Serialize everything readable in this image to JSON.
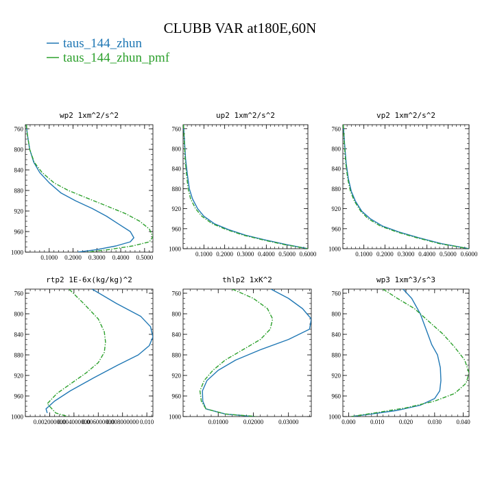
{
  "title": "CLUBB VAR at180E,60N",
  "legend": [
    {
      "label": "taus_144_zhun",
      "color": "#1f77b4",
      "dash": "solid"
    },
    {
      "label": "taus_144_zhun_pmf",
      "color": "#2ca02c",
      "dash": "dashdot"
    }
  ],
  "chart_data": [
    {
      "type": "line",
      "title": "wp2  1xm^2/s^2",
      "y_ticks": [
        760,
        800,
        840,
        880,
        920,
        960,
        1000
      ],
      "ylim": [
        752,
        1000
      ],
      "y_inverted": true,
      "x_ticks": [
        0.1,
        0.2,
        0.3,
        0.4,
        0.5
      ],
      "x_tick_labels": [
        "0.1000",
        "0.2000",
        "0.3000",
        "0.4000",
        "0.5000"
      ],
      "xlim": [
        0.0,
        0.535
      ],
      "series": [
        {
          "name": "taus_144_zhun",
          "color": "#1f77b4",
          "x": [
            0.004,
            0.008,
            0.018,
            0.035,
            0.06,
            0.1,
            0.15,
            0.21,
            0.28,
            0.34,
            0.39,
            0.44,
            0.455,
            0.44,
            0.38,
            0.3,
            0.22
          ],
          "y": [
            752,
            770,
            800,
            825,
            845,
            865,
            885,
            900,
            915,
            930,
            945,
            960,
            972,
            980,
            988,
            995,
            1000
          ]
        },
        {
          "name": "taus_144_zhun_pmf",
          "color": "#2ca02c",
          "x": [
            0.004,
            0.008,
            0.018,
            0.037,
            0.07,
            0.12,
            0.18,
            0.26,
            0.34,
            0.42,
            0.48,
            0.52,
            0.535,
            0.52,
            0.45,
            0.35,
            0.26
          ],
          "y": [
            752,
            770,
            800,
            825,
            845,
            865,
            880,
            895,
            910,
            925,
            940,
            955,
            970,
            980,
            988,
            995,
            1000
          ]
        }
      ]
    },
    {
      "type": "line",
      "title": "up2  1xm^2/s^2",
      "y_ticks": [
        760,
        800,
        840,
        880,
        920,
        960,
        1000
      ],
      "ylim": [
        752,
        1000
      ],
      "y_inverted": true,
      "x_ticks": [
        0.1,
        0.2,
        0.3,
        0.4,
        0.5,
        0.6
      ],
      "x_tick_labels": [
        "0.1000",
        "0.2000",
        "0.3000",
        "0.4000",
        "0.5000",
        "0.6000"
      ],
      "xlim": [
        0.0,
        0.6
      ],
      "series": [
        {
          "name": "taus_144_zhun",
          "color": "#1f77b4",
          "x": [
            0.002,
            0.006,
            0.012,
            0.02,
            0.03,
            0.045,
            0.07,
            0.1,
            0.15,
            0.22,
            0.3,
            0.4,
            0.5,
            0.6
          ],
          "y": [
            752,
            780,
            820,
            850,
            880,
            900,
            920,
            935,
            950,
            962,
            973,
            983,
            992,
            1000
          ]
        },
        {
          "name": "taus_144_zhun_pmf",
          "color": "#2ca02c",
          "x": [
            0.002,
            0.005,
            0.01,
            0.016,
            0.024,
            0.036,
            0.06,
            0.09,
            0.14,
            0.21,
            0.29,
            0.39,
            0.49,
            0.6
          ],
          "y": [
            752,
            780,
            820,
            850,
            880,
            900,
            920,
            935,
            950,
            962,
            973,
            983,
            992,
            1000
          ]
        }
      ]
    },
    {
      "type": "line",
      "title": "vp2  1xm^2/s^2",
      "y_ticks": [
        760,
        800,
        840,
        880,
        920,
        960,
        1000
      ],
      "ylim": [
        752,
        1000
      ],
      "y_inverted": true,
      "x_ticks": [
        0.1,
        0.2,
        0.3,
        0.4,
        0.5,
        0.6
      ],
      "x_tick_labels": [
        "0.1000",
        "0.2000",
        "0.3000",
        "0.4000",
        "0.5000",
        "0.6000"
      ],
      "xlim": [
        0.0,
        0.6
      ],
      "series": [
        {
          "name": "taus_144_zhun",
          "color": "#1f77b4",
          "x": [
            0.002,
            0.008,
            0.016,
            0.026,
            0.04,
            0.06,
            0.09,
            0.13,
            0.19,
            0.27,
            0.36,
            0.47,
            0.6
          ],
          "y": [
            752,
            790,
            830,
            860,
            885,
            905,
            925,
            940,
            955,
            967,
            978,
            990,
            1000
          ]
        },
        {
          "name": "taus_144_zhun_pmf",
          "color": "#2ca02c",
          "x": [
            0.002,
            0.007,
            0.014,
            0.023,
            0.036,
            0.055,
            0.085,
            0.12,
            0.18,
            0.26,
            0.35,
            0.46,
            0.6
          ],
          "y": [
            752,
            790,
            830,
            860,
            885,
            905,
            925,
            940,
            955,
            967,
            978,
            990,
            1000
          ]
        }
      ]
    },
    {
      "type": "line",
      "title": "rtp2  1E-6x(kg/kg)^2",
      "y_ticks": [
        760,
        800,
        840,
        880,
        920,
        960,
        1000
      ],
      "ylim": [
        752,
        1000
      ],
      "y_inverted": true,
      "x_ticks": [
        0.002,
        0.004,
        0.006,
        0.008,
        0.01
      ],
      "x_tick_labels": [
        "0.002000000",
        "0.004000000",
        "0.006000000",
        "0.008000000",
        "0.010"
      ],
      "xlim": [
        0.0,
        0.0105
      ],
      "series": [
        {
          "name": "taus_144_zhun",
          "color": "#1f77b4",
          "x": [
            0.0055,
            0.0075,
            0.0095,
            0.0103,
            0.0105,
            0.0102,
            0.0093,
            0.0076,
            0.0056,
            0.0037,
            0.0024,
            0.0017,
            0.0018
          ],
          "y": [
            752,
            780,
            805,
            825,
            845,
            862,
            880,
            900,
            925,
            950,
            970,
            985,
            993
          ]
        },
        {
          "name": "taus_144_zhun_pmf",
          "color": "#2ca02c",
          "x": [
            0.0036,
            0.0048,
            0.006,
            0.0065,
            0.0066,
            0.0065,
            0.006,
            0.005,
            0.0038,
            0.0026,
            0.0018,
            0.0025,
            0.0035
          ],
          "y": [
            752,
            780,
            810,
            835,
            855,
            875,
            895,
            915,
            935,
            955,
            975,
            993,
            1000
          ]
        }
      ]
    },
    {
      "type": "line",
      "title": "thlp2  1xK^2",
      "y_ticks": [
        760,
        800,
        840,
        880,
        920,
        960,
        1000
      ],
      "ylim": [
        752,
        1000
      ],
      "y_inverted": true,
      "x_ticks": [
        0.01,
        0.02,
        0.03
      ],
      "x_tick_labels": [
        "0.01000",
        "0.02000",
        "0.03000"
      ],
      "xlim": [
        0.0,
        0.0365
      ],
      "series": [
        {
          "name": "taus_144_zhun",
          "color": "#1f77b4",
          "x": [
            0.025,
            0.03,
            0.034,
            0.0365,
            0.036,
            0.03,
            0.022,
            0.015,
            0.01,
            0.0068,
            0.0055,
            0.0056,
            0.0065,
            0.012,
            0.02
          ],
          "y": [
            752,
            770,
            790,
            810,
            830,
            850,
            870,
            890,
            910,
            930,
            950,
            970,
            985,
            995,
            1000
          ]
        },
        {
          "name": "taus_144_zhun_pmf",
          "color": "#2ca02c",
          "x": [
            0.014,
            0.02,
            0.024,
            0.0255,
            0.0248,
            0.022,
            0.017,
            0.012,
            0.0085,
            0.006,
            0.0048,
            0.0052,
            0.0065,
            0.012,
            0.021
          ],
          "y": [
            752,
            770,
            790,
            810,
            830,
            850,
            870,
            890,
            910,
            930,
            950,
            970,
            985,
            995,
            1000
          ]
        }
      ]
    },
    {
      "type": "line",
      "title": "wp3  1xm^3/s^3",
      "y_ticks": [
        760,
        800,
        840,
        880,
        920,
        960,
        1000
      ],
      "ylim": [
        752,
        1000
      ],
      "y_inverted": true,
      "x_ticks": [
        0.0,
        0.01,
        0.02,
        0.03,
        0.04
      ],
      "x_tick_labels": [
        "0.000",
        "0.010",
        "0.020",
        "0.030",
        "0.040"
      ],
      "xlim": [
        -0.002,
        0.042
      ],
      "series": [
        {
          "name": "taus_144_zhun",
          "color": "#1f77b4",
          "x": [
            0.019,
            0.022,
            0.025,
            0.027,
            0.029,
            0.031,
            0.032,
            0.0322,
            0.0318,
            0.03,
            0.025,
            0.017,
            0.008,
            0.001
          ],
          "y": [
            752,
            770,
            800,
            830,
            860,
            880,
            905,
            930,
            950,
            965,
            978,
            988,
            995,
            1000
          ]
        },
        {
          "name": "taus_144_zhun_pmf",
          "color": "#2ca02c",
          "x": [
            0.012,
            0.017,
            0.023,
            0.028,
            0.033,
            0.037,
            0.0405,
            0.042,
            0.041,
            0.037,
            0.03,
            0.02,
            0.009,
            0.001
          ],
          "y": [
            752,
            770,
            790,
            815,
            840,
            865,
            890,
            915,
            935,
            955,
            970,
            983,
            993,
            1000
          ]
        }
      ]
    }
  ]
}
